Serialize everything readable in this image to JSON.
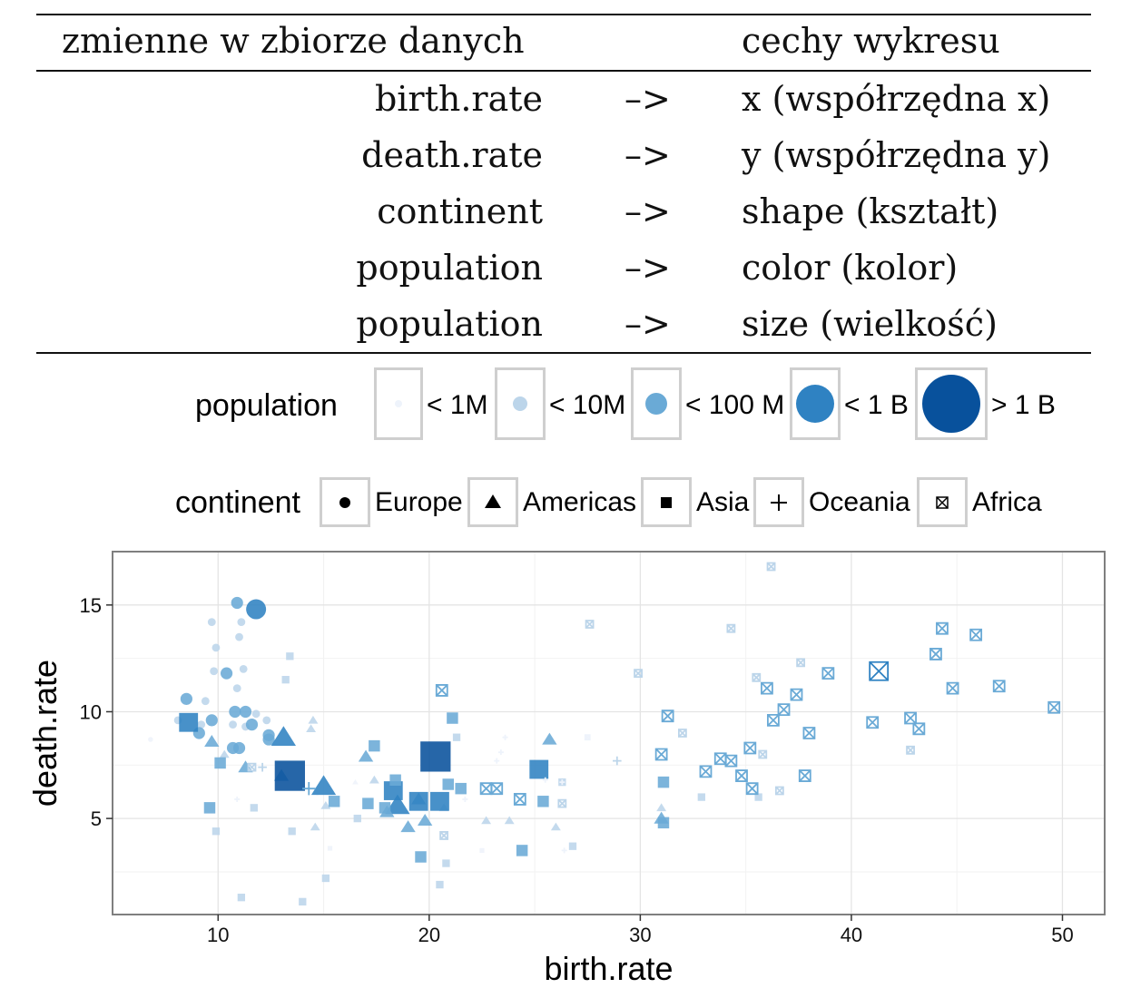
{
  "mapping_table": {
    "header_left": "zmienne w zbiorze danych",
    "header_right": "cechy wykresu",
    "rows": [
      {
        "variable": "birth.rate",
        "arrow": "–>",
        "feature": "x (współrzędna x)"
      },
      {
        "variable": "death.rate",
        "arrow": "–>",
        "feature": "y (współrzędna y)"
      },
      {
        "variable": "continent",
        "arrow": "–>",
        "feature": "shape (kształt)"
      },
      {
        "variable": "population",
        "arrow": "–>",
        "feature": "color (kolor)"
      },
      {
        "variable": "population",
        "arrow": "–>",
        "feature": "size (wielkość)"
      }
    ]
  },
  "legend_population": {
    "title": "population",
    "items": [
      {
        "label": "< 1M",
        "color": "#eef3fb"
      },
      {
        "label": "< 10M",
        "color": "#bcd5ea"
      },
      {
        "label": "< 100 M",
        "color": "#6aaad6"
      },
      {
        "label": "< 1 B",
        "color": "#2f82c2"
      },
      {
        "label": "> 1 B",
        "color": "#08519c"
      }
    ]
  },
  "legend_continent": {
    "title": "continent",
    "items": [
      {
        "label": "Europe",
        "icon": "circle-icon"
      },
      {
        "label": "Americas",
        "icon": "triangle-icon"
      },
      {
        "label": "Asia",
        "icon": "square-icon"
      },
      {
        "label": "Oceania",
        "icon": "plus-icon"
      },
      {
        "label": "Africa",
        "icon": "boxed-x-icon"
      }
    ]
  },
  "chart_data": {
    "type": "scatter",
    "xlabel": "birth.rate",
    "ylabel": "death.rate",
    "xlim": [
      5,
      52
    ],
    "ylim": [
      0.5,
      17.5
    ],
    "xticks": [
      10,
      20,
      30,
      40,
      50
    ],
    "yticks": [
      5,
      10,
      15
    ],
    "grid": true,
    "points": [
      {
        "x": 10.9,
        "y": 15.1,
        "continent": "Europe",
        "pop": 2
      },
      {
        "x": 11.8,
        "y": 14.8,
        "continent": "Europe",
        "pop": 3
      },
      {
        "x": 9.7,
        "y": 14.2,
        "continent": "Europe",
        "pop": 1
      },
      {
        "x": 11.1,
        "y": 14.2,
        "continent": "Europe",
        "pop": 1
      },
      {
        "x": 11.0,
        "y": 13.5,
        "continent": "Europe",
        "pop": 1
      },
      {
        "x": 9.9,
        "y": 13.0,
        "continent": "Europe",
        "pop": 1
      },
      {
        "x": 11.2,
        "y": 12.0,
        "continent": "Europe",
        "pop": 1
      },
      {
        "x": 9.8,
        "y": 11.9,
        "continent": "Europe",
        "pop": 1
      },
      {
        "x": 10.4,
        "y": 11.8,
        "continent": "Europe",
        "pop": 2
      },
      {
        "x": 10.9,
        "y": 11.1,
        "continent": "Europe",
        "pop": 1
      },
      {
        "x": 8.5,
        "y": 10.6,
        "continent": "Europe",
        "pop": 2
      },
      {
        "x": 9.4,
        "y": 10.5,
        "continent": "Europe",
        "pop": 1
      },
      {
        "x": 10.8,
        "y": 10.0,
        "continent": "Europe",
        "pop": 2
      },
      {
        "x": 11.3,
        "y": 10.0,
        "continent": "Europe",
        "pop": 2
      },
      {
        "x": 11.8,
        "y": 9.9,
        "continent": "Europe",
        "pop": 1
      },
      {
        "x": 8.1,
        "y": 9.6,
        "continent": "Europe",
        "pop": 1
      },
      {
        "x": 9.2,
        "y": 9.4,
        "continent": "Europe",
        "pop": 1
      },
      {
        "x": 9.7,
        "y": 9.6,
        "continent": "Europe",
        "pop": 2
      },
      {
        "x": 10.7,
        "y": 9.4,
        "continent": "Europe",
        "pop": 1
      },
      {
        "x": 11.3,
        "y": 9.3,
        "continent": "Europe",
        "pop": 1
      },
      {
        "x": 9.1,
        "y": 9.0,
        "continent": "Europe",
        "pop": 2
      },
      {
        "x": 11.6,
        "y": 9.4,
        "continent": "Europe",
        "pop": 2
      },
      {
        "x": 12.3,
        "y": 9.6,
        "continent": "Europe",
        "pop": 1
      },
      {
        "x": 12.4,
        "y": 8.9,
        "continent": "Europe",
        "pop": 2
      },
      {
        "x": 10.7,
        "y": 8.3,
        "continent": "Europe",
        "pop": 2
      },
      {
        "x": 11.0,
        "y": 8.3,
        "continent": "Europe",
        "pop": 2
      },
      {
        "x": 6.8,
        "y": 8.7,
        "continent": "Europe",
        "pop": 0
      },
      {
        "x": 12.4,
        "y": 8.7,
        "continent": "Europe",
        "pop": 2
      },
      {
        "x": 14.7,
        "y": 6.2,
        "continent": "Europe",
        "pop": 0
      },
      {
        "x": 13.1,
        "y": 8.8,
        "continent": "Americas",
        "pop": 3
      },
      {
        "x": 9.7,
        "y": 8.6,
        "continent": "Americas",
        "pop": 2
      },
      {
        "x": 14.5,
        "y": 9.6,
        "continent": "Americas",
        "pop": 1
      },
      {
        "x": 14.4,
        "y": 9.2,
        "continent": "Americas",
        "pop": 1
      },
      {
        "x": 10.3,
        "y": 8.0,
        "continent": "Americas",
        "pop": 1
      },
      {
        "x": 11.3,
        "y": 7.4,
        "continent": "Americas",
        "pop": 2
      },
      {
        "x": 17.0,
        "y": 7.9,
        "continent": "Americas",
        "pop": 2
      },
      {
        "x": 25.7,
        "y": 8.7,
        "continent": "Americas",
        "pop": 2
      },
      {
        "x": 15.0,
        "y": 6.5,
        "continent": "Americas",
        "pop": 3
      },
      {
        "x": 13.0,
        "y": 7.0,
        "continent": "Americas",
        "pop": 2
      },
      {
        "x": 16.5,
        "y": 6.7,
        "continent": "Americas",
        "pop": 0
      },
      {
        "x": 17.4,
        "y": 6.8,
        "continent": "Americas",
        "pop": 1
      },
      {
        "x": 18.5,
        "y": 5.6,
        "continent": "Americas",
        "pop": 3
      },
      {
        "x": 18.0,
        "y": 5.3,
        "continent": "Americas",
        "pop": 2
      },
      {
        "x": 19.5,
        "y": 5.9,
        "continent": "Americas",
        "pop": 2
      },
      {
        "x": 19.0,
        "y": 4.6,
        "continent": "Americas",
        "pop": 2
      },
      {
        "x": 19.8,
        "y": 4.9,
        "continent": "Americas",
        "pop": 2
      },
      {
        "x": 20.7,
        "y": 5.5,
        "continent": "Americas",
        "pop": 1
      },
      {
        "x": 22.7,
        "y": 4.9,
        "continent": "Americas",
        "pop": 1
      },
      {
        "x": 23.8,
        "y": 4.9,
        "continent": "Americas",
        "pop": 1
      },
      {
        "x": 14.6,
        "y": 4.6,
        "continent": "Americas",
        "pop": 1
      },
      {
        "x": 15.1,
        "y": 5.6,
        "continent": "Americas",
        "pop": 1
      },
      {
        "x": 26.0,
        "y": 4.6,
        "continent": "Americas",
        "pop": 1
      },
      {
        "x": 31.0,
        "y": 5.0,
        "continent": "Americas",
        "pop": 2
      },
      {
        "x": 31.0,
        "y": 5.5,
        "continent": "Americas",
        "pop": 1
      },
      {
        "x": 8.6,
        "y": 9.5,
        "continent": "Asia",
        "pop": 3
      },
      {
        "x": 13.4,
        "y": 12.6,
        "continent": "Asia",
        "pop": 1
      },
      {
        "x": 13.2,
        "y": 11.5,
        "continent": "Asia",
        "pop": 1
      },
      {
        "x": 13.4,
        "y": 7.0,
        "continent": "Asia",
        "pop": 4
      },
      {
        "x": 20.3,
        "y": 7.9,
        "continent": "Asia",
        "pop": 4
      },
      {
        "x": 21.1,
        "y": 9.7,
        "continent": "Asia",
        "pop": 2
      },
      {
        "x": 21.3,
        "y": 8.8,
        "continent": "Asia",
        "pop": 1
      },
      {
        "x": 17.4,
        "y": 8.4,
        "continent": "Asia",
        "pop": 2
      },
      {
        "x": 10.1,
        "y": 7.6,
        "continent": "Asia",
        "pop": 2
      },
      {
        "x": 25.2,
        "y": 7.3,
        "continent": "Asia",
        "pop": 3
      },
      {
        "x": 18.3,
        "y": 6.3,
        "continent": "Asia",
        "pop": 3
      },
      {
        "x": 19.5,
        "y": 5.8,
        "continent": "Asia",
        "pop": 3
      },
      {
        "x": 20.5,
        "y": 5.8,
        "continent": "Asia",
        "pop": 3
      },
      {
        "x": 21.5,
        "y": 6.4,
        "continent": "Asia",
        "pop": 2
      },
      {
        "x": 20.9,
        "y": 6.6,
        "continent": "Asia",
        "pop": 2
      },
      {
        "x": 17.1,
        "y": 5.7,
        "continent": "Asia",
        "pop": 2
      },
      {
        "x": 17.9,
        "y": 5.5,
        "continent": "Asia",
        "pop": 2
      },
      {
        "x": 18.4,
        "y": 6.8,
        "continent": "Asia",
        "pop": 2
      },
      {
        "x": 15.5,
        "y": 5.8,
        "continent": "Asia",
        "pop": 2
      },
      {
        "x": 9.6,
        "y": 5.5,
        "continent": "Asia",
        "pop": 2
      },
      {
        "x": 11.7,
        "y": 5.5,
        "continent": "Asia",
        "pop": 1
      },
      {
        "x": 9.9,
        "y": 4.4,
        "continent": "Asia",
        "pop": 1
      },
      {
        "x": 13.5,
        "y": 4.4,
        "continent": "Asia",
        "pop": 1
      },
      {
        "x": 16.6,
        "y": 5.0,
        "continent": "Asia",
        "pop": 1
      },
      {
        "x": 19.6,
        "y": 3.2,
        "continent": "Asia",
        "pop": 2
      },
      {
        "x": 20.8,
        "y": 2.9,
        "continent": "Asia",
        "pop": 1
      },
      {
        "x": 20.5,
        "y": 1.9,
        "continent": "Asia",
        "pop": 1
      },
      {
        "x": 15.1,
        "y": 2.2,
        "continent": "Asia",
        "pop": 1
      },
      {
        "x": 14.0,
        "y": 1.1,
        "continent": "Asia",
        "pop": 1
      },
      {
        "x": 11.1,
        "y": 1.3,
        "continent": "Asia",
        "pop": 1
      },
      {
        "x": 24.4,
        "y": 3.5,
        "continent": "Asia",
        "pop": 2
      },
      {
        "x": 25.4,
        "y": 5.8,
        "continent": "Asia",
        "pop": 2
      },
      {
        "x": 26.3,
        "y": 6.7,
        "continent": "Asia",
        "pop": 1
      },
      {
        "x": 26.8,
        "y": 3.7,
        "continent": "Asia",
        "pop": 1
      },
      {
        "x": 31.1,
        "y": 6.7,
        "continent": "Asia",
        "pop": 2
      },
      {
        "x": 31.1,
        "y": 4.8,
        "continent": "Asia",
        "pop": 2
      },
      {
        "x": 22.5,
        "y": 3.5,
        "continent": "Asia",
        "pop": 0
      },
      {
        "x": 15.3,
        "y": 3.6,
        "continent": "Asia",
        "pop": 0
      },
      {
        "x": 32.9,
        "y": 6.0,
        "continent": "Asia",
        "pop": 1
      },
      {
        "x": 35.6,
        "y": 6.0,
        "continent": "Asia",
        "pop": 1
      },
      {
        "x": 28.9,
        "y": 7.7,
        "continent": "Oceania",
        "pop": 1
      },
      {
        "x": 14.3,
        "y": 6.4,
        "continent": "Oceania",
        "pop": 2
      },
      {
        "x": 10.9,
        "y": 5.9,
        "continent": "Oceania",
        "pop": 0
      },
      {
        "x": 12.1,
        "y": 7.4,
        "continent": "Oceania",
        "pop": 1
      },
      {
        "x": 23.2,
        "y": 7.7,
        "continent": "Oceania",
        "pop": 0
      },
      {
        "x": 26.4,
        "y": 3.5,
        "continent": "Oceania",
        "pop": 0
      },
      {
        "x": 21.7,
        "y": 5.9,
        "continent": "Oceania",
        "pop": 0
      },
      {
        "x": 26.3,
        "y": 6.7,
        "continent": "Oceania",
        "pop": 0
      },
      {
        "x": 25.5,
        "y": 6.8,
        "continent": "Oceania",
        "pop": 0
      },
      {
        "x": 23.4,
        "y": 8.1,
        "continent": "Oceania",
        "pop": 0
      },
      {
        "x": 23.6,
        "y": 8.8,
        "continent": "Oceania",
        "pop": 0
      },
      {
        "x": 20.6,
        "y": 11.0,
        "continent": "Africa",
        "pop": 2
      },
      {
        "x": 41.3,
        "y": 11.9,
        "continent": "Africa",
        "pop": 3
      },
      {
        "x": 37.6,
        "y": 12.3,
        "continent": "Africa",
        "pop": 1
      },
      {
        "x": 36.2,
        "y": 16.8,
        "continent": "Africa",
        "pop": 1
      },
      {
        "x": 27.6,
        "y": 14.1,
        "continent": "Africa",
        "pop": 1
      },
      {
        "x": 34.3,
        "y": 13.9,
        "continent": "Africa",
        "pop": 1
      },
      {
        "x": 29.9,
        "y": 11.8,
        "continent": "Africa",
        "pop": 1
      },
      {
        "x": 44.3,
        "y": 13.9,
        "continent": "Africa",
        "pop": 2
      },
      {
        "x": 45.9,
        "y": 13.6,
        "continent": "Africa",
        "pop": 2
      },
      {
        "x": 44.0,
        "y": 12.7,
        "continent": "Africa",
        "pop": 2
      },
      {
        "x": 38.9,
        "y": 11.8,
        "continent": "Africa",
        "pop": 2
      },
      {
        "x": 36.0,
        "y": 11.1,
        "continent": "Africa",
        "pop": 2
      },
      {
        "x": 37.4,
        "y": 10.8,
        "continent": "Africa",
        "pop": 2
      },
      {
        "x": 35.5,
        "y": 11.6,
        "continent": "Africa",
        "pop": 1
      },
      {
        "x": 44.8,
        "y": 11.1,
        "continent": "Africa",
        "pop": 2
      },
      {
        "x": 47.0,
        "y": 11.2,
        "continent": "Africa",
        "pop": 2
      },
      {
        "x": 49.6,
        "y": 10.2,
        "continent": "Africa",
        "pop": 2
      },
      {
        "x": 36.8,
        "y": 10.1,
        "continent": "Africa",
        "pop": 2
      },
      {
        "x": 36.3,
        "y": 9.6,
        "continent": "Africa",
        "pop": 2
      },
      {
        "x": 31.3,
        "y": 9.8,
        "continent": "Africa",
        "pop": 2
      },
      {
        "x": 32.0,
        "y": 9.0,
        "continent": "Africa",
        "pop": 1
      },
      {
        "x": 38.0,
        "y": 9.0,
        "continent": "Africa",
        "pop": 2
      },
      {
        "x": 41.0,
        "y": 9.5,
        "continent": "Africa",
        "pop": 2
      },
      {
        "x": 42.8,
        "y": 9.7,
        "continent": "Africa",
        "pop": 2
      },
      {
        "x": 43.2,
        "y": 9.2,
        "continent": "Africa",
        "pop": 2
      },
      {
        "x": 31.0,
        "y": 8.0,
        "continent": "Africa",
        "pop": 2
      },
      {
        "x": 35.2,
        "y": 8.3,
        "continent": "Africa",
        "pop": 2
      },
      {
        "x": 35.8,
        "y": 8.0,
        "continent": "Africa",
        "pop": 1
      },
      {
        "x": 33.8,
        "y": 7.8,
        "continent": "Africa",
        "pop": 2
      },
      {
        "x": 34.3,
        "y": 7.7,
        "continent": "Africa",
        "pop": 2
      },
      {
        "x": 33.1,
        "y": 7.2,
        "continent": "Africa",
        "pop": 2
      },
      {
        "x": 34.8,
        "y": 7.0,
        "continent": "Africa",
        "pop": 2
      },
      {
        "x": 37.8,
        "y": 7.0,
        "continent": "Africa",
        "pop": 2
      },
      {
        "x": 35.3,
        "y": 6.4,
        "continent": "Africa",
        "pop": 2
      },
      {
        "x": 36.6,
        "y": 6.3,
        "continent": "Africa",
        "pop": 1
      },
      {
        "x": 42.8,
        "y": 8.2,
        "continent": "Africa",
        "pop": 1
      },
      {
        "x": 22.7,
        "y": 6.4,
        "continent": "Africa",
        "pop": 2
      },
      {
        "x": 23.2,
        "y": 6.4,
        "continent": "Africa",
        "pop": 2
      },
      {
        "x": 24.3,
        "y": 5.9,
        "continent": "Africa",
        "pop": 2
      },
      {
        "x": 26.3,
        "y": 5.7,
        "continent": "Africa",
        "pop": 1
      },
      {
        "x": 20.7,
        "y": 4.2,
        "continent": "Africa",
        "pop": 1
      },
      {
        "x": 11.6,
        "y": 7.4,
        "continent": "Africa",
        "pop": 1
      },
      {
        "x": 27.5,
        "y": 8.8,
        "continent": "Africa",
        "pop": 0
      }
    ]
  }
}
